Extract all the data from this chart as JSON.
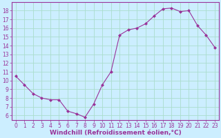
{
  "x": [
    0,
    1,
    2,
    3,
    4,
    5,
    6,
    7,
    8,
    9,
    10,
    11,
    12,
    13,
    14,
    15,
    16,
    17,
    18,
    19,
    20,
    21,
    22,
    23
  ],
  "y": [
    10.5,
    9.5,
    8.5,
    8.0,
    7.8,
    7.8,
    6.5,
    6.2,
    5.8,
    7.3,
    9.5,
    11.0,
    15.2,
    15.8,
    16.0,
    16.5,
    17.4,
    18.2,
    18.3,
    17.9,
    18.0,
    16.3,
    15.2,
    13.8
  ],
  "line_color": "#993399",
  "marker": "D",
  "marker_size": 2,
  "bg_color": "#cceeff",
  "grid_color": "#aaddcc",
  "xlabel": "Windchill (Refroidissement éolien,°C)",
  "xlim": [
    -0.5,
    23.5
  ],
  "ylim": [
    5.5,
    19.0
  ],
  "yticks": [
    6,
    7,
    8,
    9,
    10,
    11,
    12,
    13,
    14,
    15,
    16,
    17,
    18
  ],
  "xticks": [
    0,
    1,
    2,
    3,
    4,
    5,
    6,
    7,
    8,
    9,
    10,
    11,
    12,
    13,
    14,
    15,
    16,
    17,
    18,
    19,
    20,
    21,
    22,
    23
  ],
  "tick_label_size": 5.5,
  "xlabel_size": 6.5,
  "tick_color": "#993399",
  "axis_color": "#993399",
  "spine_color": "#993399"
}
